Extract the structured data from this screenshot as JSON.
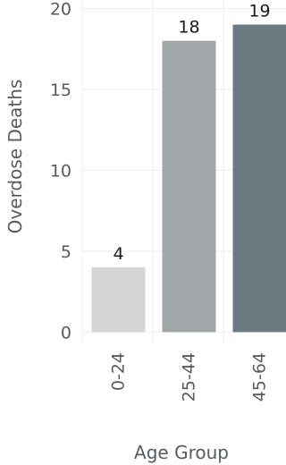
{
  "chart_data": {
    "type": "bar",
    "xlabel": "Age Group",
    "ylabel": "Overdose Deaths",
    "categories": [
      "0-24",
      "25-44",
      "45-64"
    ],
    "values": [
      4,
      18,
      19
    ],
    "data_labels": [
      "4",
      "18",
      "19"
    ],
    "y_ticks": [
      0,
      5,
      10,
      15,
      20
    ],
    "ylim": [
      -0.7,
      20.3
    ],
    "bar_colors": [
      "#d6d6d6",
      "#a1a7a9",
      "#6c7a82"
    ],
    "grid": true,
    "legend": "none"
  }
}
